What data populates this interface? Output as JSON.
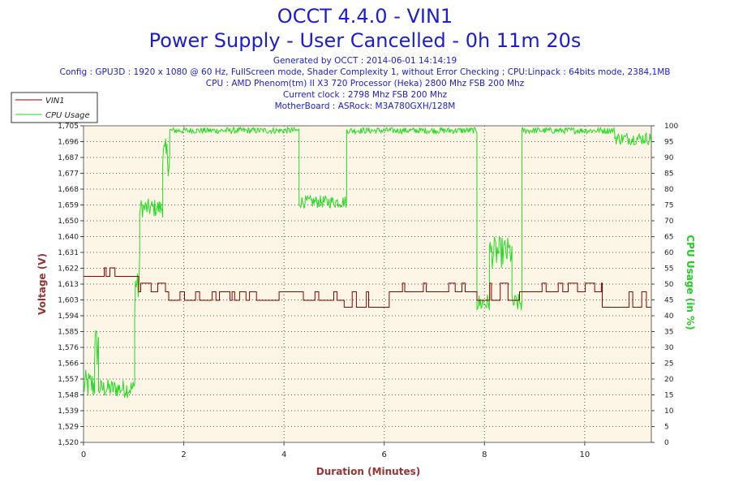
{
  "header": {
    "title": "OCCT 4.4.0 - VIN1",
    "subtitle": "Power Supply - User Cancelled - 0h 11m 20s",
    "generated": "Generated by OCCT : 2014-06-01 14:14:19",
    "config": "Config : GPU3D : 1920 x 1080 @ 60 Hz, FullScreen mode, Shader Complexity 1, without Error Checking ; CPU:Linpack : 64bits mode, 2384,1MB",
    "cpu": "CPU : AMD Phenom(tm) II X3 720 Processor (Heka) 2800 Mhz FSB 200 Mhz",
    "clock": "Current clock : 2798 Mhz FSB 200 Mhz",
    "motherboard": "MotherBoard : ASRock: M3A780GXH/128M"
  },
  "chart_data": {
    "type": "line",
    "xlabel": "Duration (Minutes)",
    "ylabel": "Voltage (V)",
    "y2label": "CPU Usage (in %)",
    "xlim": [
      0,
      11.33
    ],
    "ylim": [
      1.52,
      1.705
    ],
    "y2lim": [
      0,
      100
    ],
    "x_ticks": [
      0,
      2,
      4,
      6,
      8,
      10
    ],
    "y_ticks": [
      "1,520",
      "1,529",
      "1,539",
      "1,548",
      "1,557",
      "1,566",
      "1,576",
      "1,585",
      "1,594",
      "1,603",
      "1,613",
      "1,622",
      "1,631",
      "1,640",
      "1,650",
      "1,659",
      "1,668",
      "1,677",
      "1,687",
      "1,696",
      "1,705"
    ],
    "y2_ticks": [
      0,
      5,
      10,
      15,
      20,
      25,
      30,
      35,
      40,
      45,
      50,
      55,
      60,
      65,
      70,
      75,
      80,
      85,
      90,
      95,
      100
    ],
    "legend": [
      "VIN1",
      "CPU Usage"
    ],
    "legend_position": "top-left",
    "grid": true,
    "colors": {
      "vin1": "#8b0000",
      "cpu": "#22dd22",
      "plot_bg": "#fdf5e6",
      "title": "#1c1cd6",
      "axis_label": "#993333",
      "y2_label": "#22cc22"
    },
    "series": [
      {
        "name": "VIN1",
        "segments": [
          {
            "from": 0.0,
            "to": 0.95,
            "level": 1.617,
            "alt": 1.622
          },
          {
            "from": 0.95,
            "to": 1.1,
            "level": 1.617,
            "alt": 1.608
          },
          {
            "from": 1.1,
            "to": 1.7,
            "level": 1.608,
            "alt": 1.613
          },
          {
            "from": 1.7,
            "to": 5.2,
            "level": 1.603,
            "alt": 1.608
          },
          {
            "from": 5.2,
            "to": 6.1,
            "level": 1.599,
            "alt": 1.608
          },
          {
            "from": 6.1,
            "to": 7.85,
            "level": 1.608,
            "alt": 1.613
          },
          {
            "from": 7.85,
            "to": 8.7,
            "level": 1.603,
            "alt": 1.613
          },
          {
            "from": 8.7,
            "to": 10.35,
            "level": 1.608,
            "alt": 1.613
          },
          {
            "from": 10.35,
            "to": 11.33,
            "level": 1.599,
            "alt": 1.608
          }
        ]
      },
      {
        "name": "CPU Usage",
        "segments": [
          {
            "from": 0.0,
            "to": 0.22,
            "level": 18,
            "noise": 5
          },
          {
            "from": 0.22,
            "to": 0.3,
            "level": 30,
            "noise": 7
          },
          {
            "from": 0.3,
            "to": 1.02,
            "level": 17,
            "noise": 3
          },
          {
            "from": 1.02,
            "to": 1.12,
            "level": 50,
            "noise": 10
          },
          {
            "from": 1.12,
            "to": 1.58,
            "level": 74,
            "noise": 3
          },
          {
            "from": 1.58,
            "to": 1.72,
            "level": 90,
            "noise": 6
          },
          {
            "from": 1.72,
            "to": 4.3,
            "level": 98.5,
            "noise": 1
          },
          {
            "from": 4.3,
            "to": 5.25,
            "level": 76,
            "noise": 2
          },
          {
            "from": 5.25,
            "to": 7.85,
            "level": 98.5,
            "noise": 1
          },
          {
            "from": 7.85,
            "to": 8.1,
            "level": 44,
            "noise": 3
          },
          {
            "from": 8.1,
            "to": 8.55,
            "level": 60,
            "noise": 5
          },
          {
            "from": 8.55,
            "to": 8.75,
            "level": 44,
            "noise": 3
          },
          {
            "from": 8.75,
            "to": 10.6,
            "level": 98.5,
            "noise": 1
          },
          {
            "from": 10.6,
            "to": 11.33,
            "level": 96,
            "noise": 2
          }
        ]
      }
    ]
  }
}
